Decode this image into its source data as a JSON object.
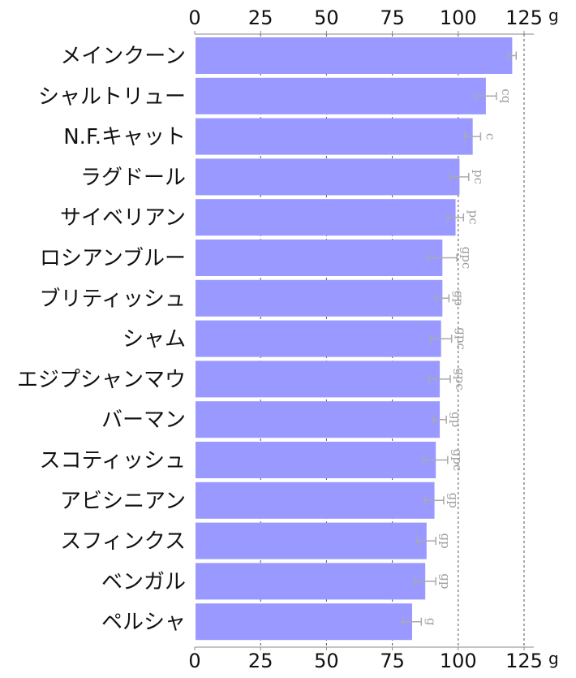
{
  "chart_data": {
    "type": "bar",
    "orientation": "horizontal",
    "categories": [
      "メインクーン",
      "シャルトリュー",
      "N.F.キャット",
      "ラグドール",
      "サイベリアン",
      "ロシアンブルー",
      "ブリティッシュ",
      "シャム",
      "エジプシャンマウ",
      "バーマン",
      "スコティッシュ",
      "アビシニアン",
      "スフィンクス",
      "ベンガル",
      "ペルシャ"
    ],
    "values": [
      120.5,
      110.5,
      105.5,
      100.5,
      99,
      94,
      94,
      93.5,
      93,
      93,
      91.5,
      91,
      88,
      87.5,
      82.5
    ],
    "errors": [
      1.5,
      4,
      3,
      3.5,
      3,
      5.5,
      2.5,
      4,
      4,
      2.5,
      4.5,
      3.5,
      3.5,
      4,
      3.5
    ],
    "significance": [
      "",
      "cq",
      "c",
      "pc",
      "pc",
      "gpc",
      "gp",
      "gpc",
      "gpc",
      "gp",
      "gpc",
      "gp",
      "gp",
      "gp",
      "g"
    ],
    "xlim": [
      0,
      125
    ],
    "ticks": [
      "0",
      "25",
      "50",
      "75",
      "100",
      "125"
    ],
    "unit": "g",
    "grid": true,
    "bar_color": "#9999ff"
  }
}
